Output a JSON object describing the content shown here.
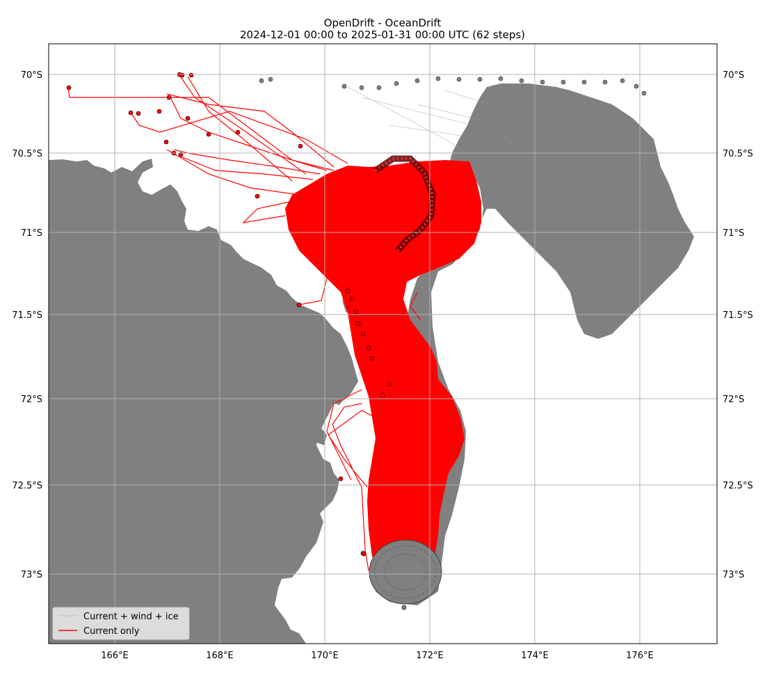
{
  "title": {
    "line1": "OpenDrift - OceanDrift",
    "line2": "2024-12-01 00:00 to 2025-01-31 00:00 UTC (62 steps)"
  },
  "axes": {
    "lon_ticks": [
      "166°E",
      "168°E",
      "170°E",
      "172°E",
      "174°E",
      "176°E"
    ],
    "lat_ticks": [
      "70°S",
      "70.5°S",
      "71°S",
      "71.5°S",
      "72°S",
      "72.5°S",
      "73°S"
    ]
  },
  "legend": {
    "placement": "lower-left",
    "items": [
      {
        "label": "Current + wind + ice",
        "color": "#c8c8c8"
      },
      {
        "label": "Current only",
        "color": "#ff0000"
      }
    ]
  },
  "colors": {
    "land": "#808080",
    "current_only": "#ff0000",
    "current_wind_ice": "#808080",
    "grid": "#b0b0b0"
  },
  "map_extent": {
    "lon": [
      164.7,
      177.45
    ],
    "lat": [
      -73.45,
      -69.8
    ]
  },
  "chart_data": {
    "type": "map",
    "title": "OpenDrift - OceanDrift\n2024-12-01 00:00 to 2025-01-31 00:00 UTC (62 steps)",
    "grid": true,
    "legend_placement": "lower-left",
    "series": [
      {
        "name": "Current + wind + ice",
        "color": "#808080",
        "seed_center": {
          "lon": 171.4,
          "lat": -73.0
        },
        "final_positions_cluster": {
          "lon_range": [
            170.4,
            176.1
          ],
          "lat_range": [
            -70.1,
            -70.0
          ]
        }
      },
      {
        "name": "Current only",
        "color": "#ff0000",
        "seed_center": {
          "lon": 171.4,
          "lat": -73.0
        },
        "final_positions_cluster": {
          "lon_range": [
            165.1,
            171.5
          ],
          "lat_range": [
            -72.5,
            -70.0
          ]
        }
      }
    ]
  }
}
